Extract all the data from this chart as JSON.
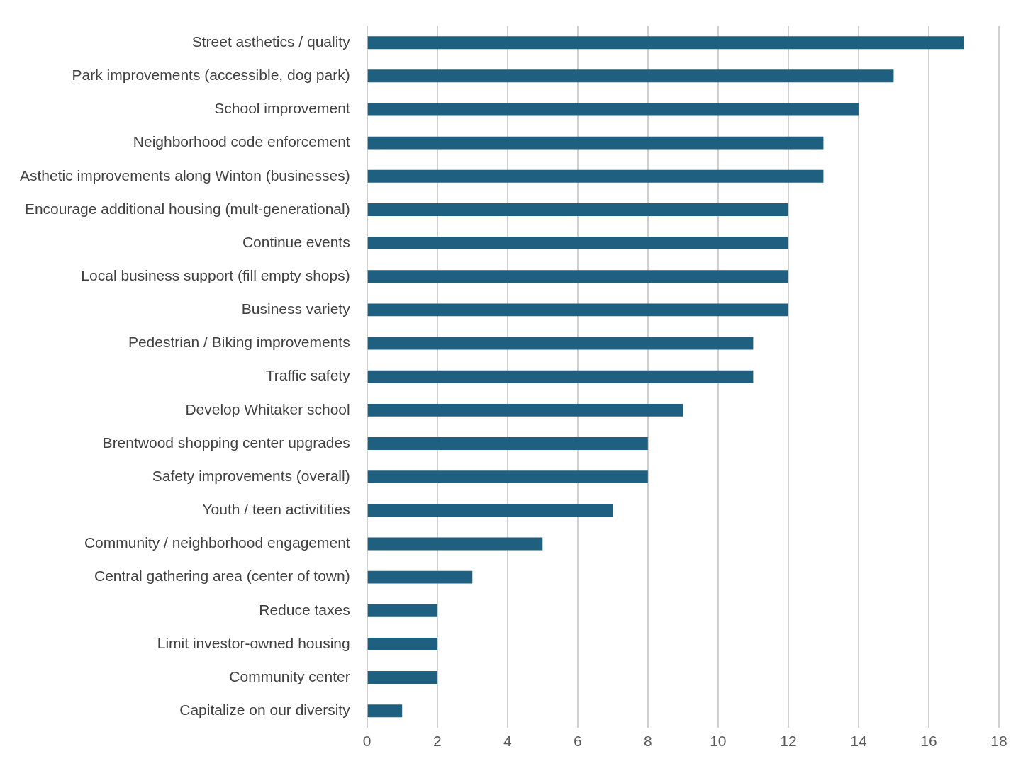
{
  "chart_data": {
    "type": "bar",
    "orientation": "horizontal",
    "categories": [
      "Street asthetics / quality",
      "Park improvements (accessible, dog park)",
      "School improvement",
      "Neighborhood code enforcement",
      "Asthetic improvements along Winton (businesses)",
      "Encourage additional housing (mult-generational)",
      "Continue events",
      "Local business support (fill empty shops)",
      "Business variety",
      "Pedestrian / Biking improvements",
      "Traffic safety",
      "Develop Whitaker school",
      "Brentwood shopping center upgrades",
      "Safety improvements (overall)",
      "Youth / teen activitities",
      "Community / neighborhood engagement",
      "Central gathering area (center of town)",
      "Reduce taxes",
      "Limit investor-owned housing",
      "Community center",
      "Capitalize on our diversity"
    ],
    "values": [
      17,
      15,
      14,
      13,
      13,
      12,
      12,
      12,
      12,
      11,
      11,
      9,
      8,
      8,
      7,
      5,
      3,
      2,
      2,
      2,
      1
    ],
    "color": "#1f5f7f",
    "xlim": [
      0,
      18
    ],
    "xticks": [
      0,
      2,
      4,
      6,
      8,
      10,
      12,
      14,
      16,
      18
    ],
    "grid": "x",
    "legend": false
  }
}
